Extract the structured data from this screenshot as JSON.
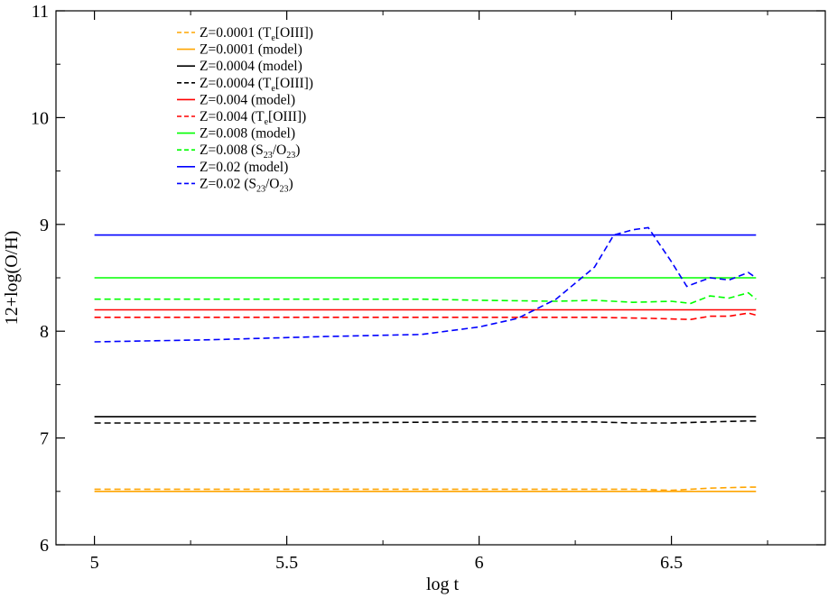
{
  "chart_data": {
    "type": "line",
    "title": "",
    "xlabel": "log t",
    "ylabel": "12+log(O/H)",
    "xlim": [
      4.9,
      6.9
    ],
    "ylim": [
      6,
      11
    ],
    "xticks": [
      "5",
      "5.5",
      "6",
      "6.5"
    ],
    "yticks": [
      "6",
      "7",
      "8",
      "9",
      "10",
      "11"
    ],
    "legend_position": "top-left",
    "series": [
      {
        "label": {
          "pre": "Z=0.0001 (T",
          "sub": "e",
          "post": "[OIII])"
        },
        "color": "#ffa500",
        "dash": true,
        "x": [
          5.0,
          5.5,
          6.0,
          6.2,
          6.4,
          6.5,
          6.6,
          6.7,
          6.72
        ],
        "y": [
          6.52,
          6.52,
          6.52,
          6.52,
          6.52,
          6.51,
          6.53,
          6.54,
          6.54
        ]
      },
      {
        "label": {
          "pre": "Z=0.0001 (model)",
          "sub": "",
          "post": ""
        },
        "color": "#ffa500",
        "dash": false,
        "x": [
          5.0,
          6.72
        ],
        "y": [
          6.5,
          6.5
        ]
      },
      {
        "label": {
          "pre": "Z=0.0004 (model)",
          "sub": "",
          "post": ""
        },
        "color": "#000000",
        "dash": false,
        "x": [
          5.0,
          6.72
        ],
        "y": [
          7.2,
          7.2
        ]
      },
      {
        "label": {
          "pre": "Z=0.0004 (T",
          "sub": "e",
          "post": "[OIII])"
        },
        "color": "#000000",
        "dash": true,
        "x": [
          5.0,
          5.5,
          6.0,
          6.3,
          6.4,
          6.5,
          6.6,
          6.7,
          6.72
        ],
        "y": [
          7.14,
          7.14,
          7.15,
          7.15,
          7.14,
          7.14,
          7.15,
          7.16,
          7.16
        ]
      },
      {
        "label": {
          "pre": "Z=0.004 (model)",
          "sub": "",
          "post": ""
        },
        "color": "#ff0000",
        "dash": false,
        "x": [
          5.0,
          6.72
        ],
        "y": [
          8.2,
          8.2
        ]
      },
      {
        "label": {
          "pre": "Z=0.004 (T",
          "sub": "e",
          "post": "[OIII])"
        },
        "color": "#ff0000",
        "dash": true,
        "x": [
          5.0,
          5.5,
          6.0,
          6.3,
          6.45,
          6.55,
          6.6,
          6.65,
          6.7,
          6.72
        ],
        "y": [
          8.13,
          8.13,
          8.13,
          8.13,
          8.12,
          8.11,
          8.14,
          8.14,
          8.17,
          8.15
        ]
      },
      {
        "label": {
          "pre": "Z=0.008 (model)",
          "sub": "",
          "post": ""
        },
        "color": "#00ff00",
        "dash": false,
        "x": [
          5.0,
          6.72
        ],
        "y": [
          8.5,
          8.5
        ]
      },
      {
        "label": {
          "pre": "Z=0.008 (S",
          "sub": "23",
          "post": "/O",
          "sub2": "23",
          "post2": ")"
        },
        "color": "#00ff00",
        "dash": true,
        "x": [
          5.0,
          5.5,
          5.85,
          6.0,
          6.2,
          6.3,
          6.4,
          6.5,
          6.55,
          6.6,
          6.65,
          6.7,
          6.72
        ],
        "y": [
          8.3,
          8.3,
          8.3,
          8.29,
          8.28,
          8.29,
          8.27,
          8.28,
          8.26,
          8.33,
          8.31,
          8.36,
          8.3
        ]
      },
      {
        "label": {
          "pre": "Z=0.02 (model)",
          "sub": "",
          "post": ""
        },
        "color": "#0000ff",
        "dash": false,
        "x": [
          5.0,
          6.72
        ],
        "y": [
          8.9,
          8.9
        ]
      },
      {
        "label": {
          "pre": "Z=0.02 (S",
          "sub": "23",
          "post": "/O",
          "sub2": "23",
          "post2": ")"
        },
        "color": "#0000ff",
        "dash": true,
        "x": [
          5.0,
          5.3,
          5.6,
          5.85,
          6.0,
          6.1,
          6.2,
          6.3,
          6.35,
          6.4,
          6.44,
          6.5,
          6.54,
          6.6,
          6.65,
          6.7,
          6.72
        ],
        "y": [
          7.9,
          7.92,
          7.95,
          7.97,
          8.04,
          8.12,
          8.3,
          8.6,
          8.9,
          8.95,
          8.97,
          8.65,
          8.42,
          8.5,
          8.48,
          8.55,
          8.5
        ]
      }
    ]
  }
}
